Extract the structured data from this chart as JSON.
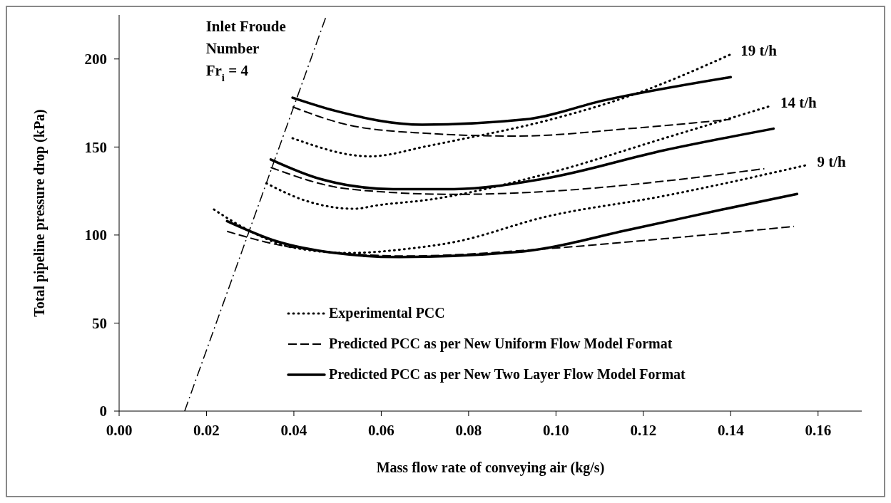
{
  "chart_data": {
    "type": "line",
    "xlabel": "Mass flow rate of conveying air (kg/s)",
    "ylabel": "Total pipeline pressure drop (kPa)",
    "xlim": [
      0,
      0.17
    ],
    "xticks": [
      {
        "value": 0,
        "label": "0.00"
      },
      {
        "value": 0.02,
        "label": "0.02"
      },
      {
        "value": 0.04,
        "label": "0.04"
      },
      {
        "value": 0.06,
        "label": "0.06"
      },
      {
        "value": 0.08,
        "label": "0.08"
      },
      {
        "value": 0.1,
        "label": "0.10"
      },
      {
        "value": 0.12,
        "label": "0.12"
      },
      {
        "value": 0.14,
        "label": "0.14"
      },
      {
        "value": 0.16,
        "label": "0.16"
      }
    ],
    "ylim": [
      0,
      225
    ],
    "yticks": [
      0,
      50,
      100,
      150,
      200
    ],
    "grid": false,
    "legend": "bottom right",
    "marker": "none",
    "series": [
      {
        "name": "Experimental PCC",
        "color": "#000000",
        "line_style": "dotted",
        "x": [
          0.0397,
          0.0574,
          0.0707,
          0.0767,
          0.0977,
          0.118,
          0.14
        ],
        "values": [
          155,
          144.7,
          150.6,
          153.6,
          164.9,
          180,
          202.6
        ]
      },
      {
        "name": "Predicted PCC as per New Uniform Flow Model Format",
        "color": "#000000",
        "line_style": "dashed",
        "x": [
          0.0397,
          0.0527,
          0.0694,
          0.0909,
          0.118,
          0.14
        ],
        "values": [
          172.8,
          162.4,
          157.9,
          156.2,
          160.7,
          165.7
        ]
      },
      {
        "name": "Predicted PCC as per New Two Layer Flow Model Format",
        "color": "#000000",
        "line_style": "solid",
        "x": [
          0.0397,
          0.0494,
          0.0694,
          0.093,
          0.1112,
          0.14
        ],
        "values": [
          178,
          170.6,
          162.7,
          165.7,
          176.6,
          189.7
        ]
      },
      {
        "color": "#000000",
        "line_style": "dotted",
        "x": [
          0.0337,
          0.0427,
          0.0537,
          0.0594,
          0.0707,
          0.0977,
          0.1247,
          0.1491
        ],
        "values": [
          129.4,
          119.5,
          114.9,
          117,
          120,
          134.7,
          154.9,
          173.3
        ]
      },
      {
        "color": "#000000",
        "line_style": "dashed",
        "x": [
          0.0347,
          0.0527,
          0.0767,
          0.0977,
          0.1247,
          0.1477
        ],
        "values": [
          138.4,
          126.1,
          123.1,
          124.7,
          130.6,
          137.7
        ]
      },
      {
        "color": "#000000",
        "line_style": "solid",
        "x": [
          0.0347,
          0.0461,
          0.0627,
          0.0767,
          0.0977,
          0.1247,
          0.1498
        ],
        "values": [
          142.9,
          131.8,
          126.1,
          126.1,
          132.2,
          148.1,
          160.4
        ]
      },
      {
        "color": "#000000",
        "line_style": "dotted",
        "x": [
          0.0217,
          0.0294,
          0.0394,
          0.0527,
          0.0661,
          0.0767,
          0.0977,
          0.1247,
          0.1575
        ],
        "values": [
          114.5,
          103,
          93.1,
          89.8,
          92.2,
          96,
          110.4,
          122.2,
          139.8
        ]
      },
      {
        "color": "#000000",
        "line_style": "dashed",
        "x": [
          0.0247,
          0.0394,
          0.0661,
          0.0977,
          0.1247,
          0.1545
        ],
        "values": [
          102.1,
          93.1,
          88.1,
          92.2,
          97.9,
          104.9
        ]
      },
      {
        "color": "#000000",
        "line_style": "solid",
        "x": [
          0.0247,
          0.0361,
          0.0494,
          0.0641,
          0.0909,
          0.118,
          0.1383,
          0.1552
        ],
        "values": [
          107.9,
          96.4,
          89.8,
          87.5,
          90.3,
          103.7,
          114.6,
          123.3
        ]
      },
      {
        "color": "#000000",
        "line_style": "dashdot",
        "x": [
          0.015,
          0.0475
        ],
        "values": [
          0,
          225
        ]
      }
    ],
    "annotations": [
      {
        "text": "19 t/h",
        "x": 0.14,
        "y": 202.6
      },
      {
        "text": "14 t/h",
        "x": 0.1491,
        "y": 173.3
      },
      {
        "text": "9 t/h",
        "x": 0.1575,
        "y": 139.8
      },
      {
        "text": "Inlet Froude\nNumber\nFr$_{i}$ = 4",
        "x": 0.046,
        "y": 215
      }
    ]
  }
}
